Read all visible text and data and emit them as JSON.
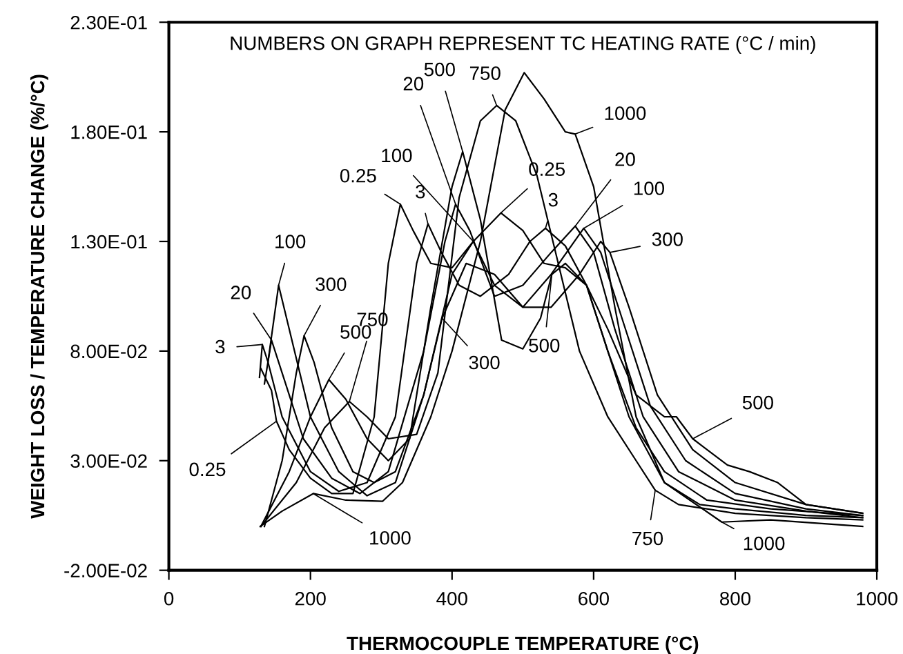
{
  "chart_data": {
    "type": "line",
    "xlabel": "THERMOCOUPLE TEMPERATURE (°C)",
    "ylabel": "WEIGHT LOSS / TEMPERATURE CHANGE (%/°C)",
    "xlim": [
      0,
      1000
    ],
    "xticks": [
      0,
      200,
      400,
      600,
      800,
      1000
    ],
    "ylim": [
      -0.02,
      0.23
    ],
    "yticks": [
      {
        "value": -0.02,
        "label": "-2.00E-02"
      },
      {
        "value": 0.03,
        "label": "3.00E-02"
      },
      {
        "value": 0.08,
        "label": "8.00E-02"
      },
      {
        "value": 0.13,
        "label": "1.30E-01"
      },
      {
        "value": 0.18,
        "label": "1.80E-01"
      },
      {
        "value": 0.23,
        "label": "2.30E-01"
      }
    ],
    "grid": false,
    "legend": false,
    "marker": "none",
    "line_style": "solid",
    "series": [
      {
        "color": "#000000",
        "x": [
          130,
          145,
          152,
          170,
          200,
          230,
          260,
          290,
          310,
          327,
          345,
          370,
          400,
          430,
          469,
          500,
          530,
          560,
          590,
          620,
          650,
          700,
          750,
          800,
          900,
          980
        ],
        "values": [
          0.072,
          0.062,
          0.048,
          0.035,
          0.022,
          0.015,
          0.015,
          0.05,
          0.12,
          0.147,
          0.135,
          0.12,
          0.118,
          0.13,
          0.143,
          0.135,
          0.12,
          0.118,
          0.11,
          0.08,
          0.05,
          0.02,
          0.01,
          0.008,
          0.005,
          0.004
        ]
      },
      {
        "color": "#000000",
        "x": [
          128,
          132,
          140,
          160,
          200,
          240,
          280,
          320,
          350,
          366,
          385,
          410,
          440,
          480,
          510,
          532,
          560,
          590,
          620,
          660,
          700,
          760,
          850,
          980
        ],
        "values": [
          0.068,
          0.083,
          0.075,
          0.05,
          0.025,
          0.016,
          0.02,
          0.05,
          0.12,
          0.138,
          0.125,
          0.11,
          0.105,
          0.115,
          0.13,
          0.136,
          0.128,
          0.11,
          0.08,
          0.045,
          0.025,
          0.012,
          0.008,
          0.005
        ]
      },
      {
        "color": "#000000",
        "x": [
          135,
          145,
          160,
          190,
          230,
          270,
          310,
          360,
          390,
          405,
          425,
          460,
          500,
          540,
          574,
          600,
          630,
          670,
          720,
          800,
          900,
          980
        ],
        "values": [
          0.065,
          0.085,
          0.07,
          0.04,
          0.022,
          0.015,
          0.025,
          0.08,
          0.13,
          0.147,
          0.135,
          0.105,
          0.11,
          0.125,
          0.137,
          0.125,
          0.09,
          0.05,
          0.025,
          0.012,
          0.007,
          0.004
        ]
      },
      {
        "color": "#000000",
        "x": [
          140,
          155,
          170,
          200,
          240,
          280,
          320,
          360,
          400,
          430,
          460,
          500,
          540,
          586,
          610,
          640,
          680,
          730,
          800,
          900,
          980
        ],
        "values": [
          0.075,
          0.11,
          0.09,
          0.05,
          0.025,
          0.014,
          0.02,
          0.06,
          0.115,
          0.13,
          0.11,
          0.1,
          0.115,
          0.136,
          0.125,
          0.095,
          0.055,
          0.03,
          0.015,
          0.008,
          0.005
        ]
      },
      {
        "color": "#000000",
        "x": [
          135,
          160,
          180,
          191,
          205,
          230,
          260,
          290,
          320,
          360,
          386,
          420,
          460,
          500,
          540,
          580,
          610,
          623,
          650,
          690,
          740,
          800,
          900,
          980
        ],
        "values": [
          0.0,
          0.03,
          0.07,
          0.087,
          0.075,
          0.045,
          0.025,
          0.02,
          0.025,
          0.06,
          0.095,
          0.12,
          0.115,
          0.1,
          0.1,
          0.115,
          0.13,
          0.125,
          0.1,
          0.06,
          0.035,
          0.02,
          0.01,
          0.006
        ]
      },
      {
        "color": "#000000",
        "x": [
          130,
          170,
          200,
          226,
          250,
          280,
          310,
          340,
          370,
          400,
          415,
          440,
          470,
          500,
          525,
          541,
          560,
          590,
          620,
          660,
          700,
          717,
          740,
          789,
          820,
          860,
          900,
          980
        ],
        "values": [
          0.0,
          0.025,
          0.05,
          0.067,
          0.058,
          0.04,
          0.03,
          0.04,
          0.1,
          0.155,
          0.171,
          0.14,
          0.085,
          0.081,
          0.095,
          0.115,
          0.12,
          0.11,
          0.09,
          0.06,
          0.05,
          0.05,
          0.04,
          0.028,
          0.025,
          0.02,
          0.01,
          0.006
        ]
      },
      {
        "color": "#000000",
        "x": [
          130,
          180,
          220,
          255,
          280,
          310,
          350,
          380,
          410,
          440,
          463,
          490,
          520,
          550,
          580,
          620,
          660,
          687,
          720,
          800,
          900,
          980
        ],
        "values": [
          0.0,
          0.02,
          0.045,
          0.057,
          0.05,
          0.04,
          0.042,
          0.07,
          0.15,
          0.185,
          0.192,
          0.185,
          0.16,
          0.12,
          0.08,
          0.05,
          0.03,
          0.0165,
          0.01,
          0.006,
          0.004,
          0.003
        ]
      },
      {
        "color": "#000000",
        "x": [
          129,
          160,
          204,
          250,
          302,
          330,
          370,
          400,
          440,
          475,
          502,
          530,
          560,
          574,
          600,
          630,
          660,
          700,
          781,
          850,
          980
        ],
        "values": [
          0.0,
          0.007,
          0.015,
          0.012,
          0.0115,
          0.02,
          0.05,
          0.08,
          0.13,
          0.19,
          0.207,
          0.195,
          0.18,
          0.179,
          0.155,
          0.1,
          0.05,
          0.02,
          0.002,
          0.003,
          0.0
        ]
      }
    ],
    "annotations": [
      "NUMBERS ON GRAPH REPRESENT TC HEATING RATE (°C / min)",
      {
        "text": "0.25",
        "x": 327,
        "y": 0.147
      },
      {
        "text": "3",
        "x": 366,
        "y": 0.138
      },
      {
        "text": "20",
        "x": 405,
        "y": 0.147
      },
      {
        "text": "100",
        "x": 430,
        "y": 0.13
      },
      {
        "text": "500",
        "x": 415,
        "y": 0.171
      },
      {
        "text": "750",
        "x": 463,
        "y": 0.192
      },
      {
        "text": "1000",
        "x": 574,
        "y": 0.179
      },
      {
        "text": "0.25",
        "x": 469,
        "y": 0.143
      },
      {
        "text": "3",
        "x": 532,
        "y": 0.136
      },
      {
        "text": "20",
        "x": 574,
        "y": 0.137
      },
      {
        "text": "100",
        "x": 586,
        "y": 0.136
      },
      {
        "text": "300",
        "x": 623,
        "y": 0.125
      },
      {
        "text": "300",
        "x": 386,
        "y": 0.095
      },
      {
        "text": "500",
        "x": 541,
        "y": 0.115
      },
      {
        "text": "500",
        "x": 740,
        "y": 0.04
      },
      {
        "text": "750",
        "x": 687,
        "y": 0.0165
      },
      {
        "text": "1000",
        "x": 781,
        "y": 0.002
      },
      {
        "text": "100",
        "x": 155,
        "y": 0.11
      },
      {
        "text": "20",
        "x": 145,
        "y": 0.085
      },
      {
        "text": "300",
        "x": 191,
        "y": 0.087
      },
      {
        "text": "500",
        "x": 226,
        "y": 0.067
      },
      {
        "text": "750",
        "x": 255,
        "y": 0.057
      },
      {
        "text": "3",
        "x": 132,
        "y": 0.083
      },
      {
        "text": "0.25",
        "x": 152,
        "y": 0.048
      },
      {
        "text": "1000",
        "x": 204,
        "y": 0.015
      }
    ]
  }
}
